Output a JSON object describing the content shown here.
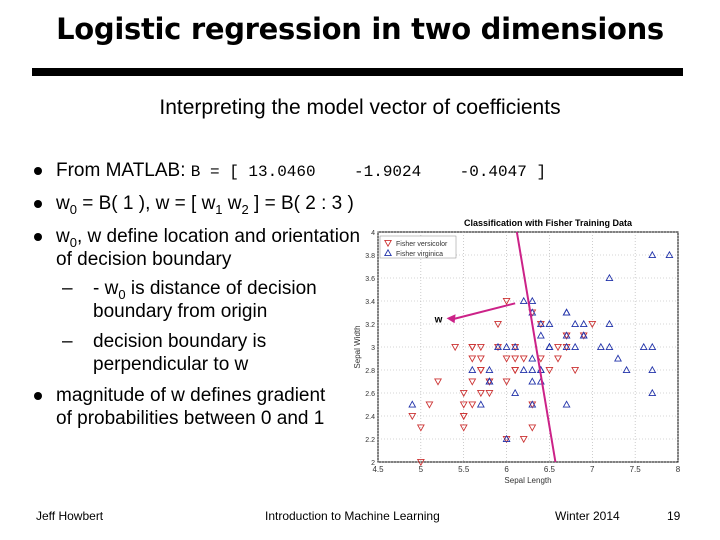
{
  "slide": {
    "title": "Logistic regression in two dimensions",
    "subtitle": "Interpreting the model vector of coefficients",
    "bullets": {
      "b1_text": "From MATLAB:",
      "b1_code": "B = [ 13.0460    -1.9024    -0.4047 ]",
      "b2_w0": "w",
      "b2_sub0": "0",
      "b2_mid": " = B( 1 ), w = [ w",
      "b2_sub1": "1",
      "b2_sp": " w",
      "b2_sub2": "2",
      "b2_end": " ] = B( 2 : 3 )",
      "b3_w": "w",
      "b3_sub": "0",
      "b3_line1": ", w define location and orientation",
      "b3_line2": "of decision boundary",
      "s1_pre": "- w",
      "s1_sub": "0",
      "s1_line1": " is distance of decision",
      "s1_line2": "boundary from origin",
      "s2_line1": "decision boundary is",
      "s2_line2": "perpendicular to w",
      "b4_line1": "magnitude of w defines gradient",
      "b4_line2": "of probabilities between 0 and 1"
    },
    "footer": {
      "author": "Jeff Howbert",
      "course": "Introduction to Machine Learning",
      "term": "Winter 2014",
      "page": "19"
    }
  },
  "chart_data": {
    "type": "scatter",
    "title": "Classification with Fisher Training Data",
    "xlabel": "Sepal Length",
    "ylabel": "Sepal Width",
    "xlim": [
      4.5,
      8
    ],
    "ylim": [
      2,
      4
    ],
    "xticks": [
      "4.5",
      "5",
      "5.5",
      "6",
      "6.5",
      "7",
      "7.5",
      "8"
    ],
    "yticks": [
      "2",
      "2.2",
      "2.4",
      "2.6",
      "2.8",
      "3",
      "3.2",
      "3.4",
      "3.6",
      "3.8",
      "4"
    ],
    "legend": [
      "Fisher versicolor",
      "Fisher virginica"
    ],
    "legend_position": "top-left",
    "annotation": "w",
    "colors": {
      "versicolor": "#cc3333",
      "virginica": "#2233aa",
      "boundary": "#cc2288",
      "arrow": "#cc2288"
    },
    "series": [
      {
        "name": "Fisher versicolor",
        "marker": "triangle-down",
        "x": [
          7.0,
          6.4,
          6.9,
          5.5,
          6.5,
          5.7,
          6.3,
          4.9,
          6.6,
          5.2,
          5.0,
          5.9,
          6.0,
          6.1,
          5.6,
          6.7,
          5.6,
          5.8,
          6.2,
          5.6,
          5.9,
          6.1,
          6.3,
          6.1,
          6.4,
          6.6,
          6.8,
          6.7,
          6.0,
          5.7,
          5.5,
          5.5,
          5.8,
          6.0,
          5.4,
          6.0,
          6.7,
          6.3,
          5.6,
          5.5,
          5.5,
          6.1,
          5.8,
          5.0,
          5.6,
          5.7,
          5.7,
          6.2,
          5.1,
          5.7
        ],
        "y": [
          3.2,
          3.2,
          3.1,
          2.3,
          2.8,
          2.8,
          3.3,
          2.4,
          2.9,
          2.7,
          2.0,
          3.0,
          2.2,
          2.9,
          2.9,
          3.1,
          3.0,
          2.7,
          2.2,
          2.5,
          3.2,
          2.8,
          2.5,
          2.8,
          2.9,
          3.0,
          2.8,
          3.0,
          2.9,
          2.6,
          2.4,
          2.4,
          2.7,
          2.7,
          3.0,
          3.4,
          3.1,
          2.3,
          3.0,
          2.5,
          2.6,
          3.0,
          2.6,
          2.3,
          2.7,
          3.0,
          2.9,
          2.9,
          2.5,
          2.8
        ]
      },
      {
        "name": "Fisher virginica",
        "marker": "triangle-up",
        "x": [
          6.3,
          5.8,
          7.1,
          6.3,
          6.5,
          7.6,
          4.9,
          7.3,
          6.7,
          7.2,
          6.5,
          6.4,
          6.8,
          5.7,
          5.8,
          6.4,
          6.5,
          7.7,
          7.7,
          6.0,
          6.9,
          5.6,
          7.7,
          6.3,
          6.7,
          7.2,
          6.2,
          6.1,
          6.4,
          7.2,
          7.4,
          7.9,
          6.4,
          6.3,
          6.1,
          7.7,
          6.3,
          6.4,
          6.0,
          6.9,
          6.7,
          6.9,
          5.8,
          6.8,
          6.7,
          6.7,
          6.3,
          6.5,
          6.2,
          5.9
        ],
        "y": [
          3.3,
          2.7,
          3.0,
          2.9,
          3.0,
          3.0,
          2.5,
          2.9,
          2.5,
          3.6,
          3.2,
          2.7,
          3.0,
          2.5,
          2.8,
          3.2,
          3.0,
          3.8,
          2.6,
          2.2,
          3.2,
          2.8,
          2.8,
          2.7,
          3.3,
          3.2,
          2.8,
          3.0,
          2.8,
          3.0,
          2.8,
          3.8,
          2.8,
          2.8,
          2.6,
          3.0,
          3.4,
          3.1,
          3.0,
          3.1,
          3.1,
          3.1,
          2.7,
          3.2,
          3.3,
          3.0,
          2.5,
          3.0,
          3.4,
          3.0
        ]
      }
    ],
    "boundary": {
      "x": [
        6.12,
        6.57
      ],
      "y": [
        4.0,
        2.0
      ]
    },
    "w_arrow": {
      "from": [
        6.1,
        3.38
      ],
      "to": [
        5.3,
        3.25
      ]
    }
  }
}
